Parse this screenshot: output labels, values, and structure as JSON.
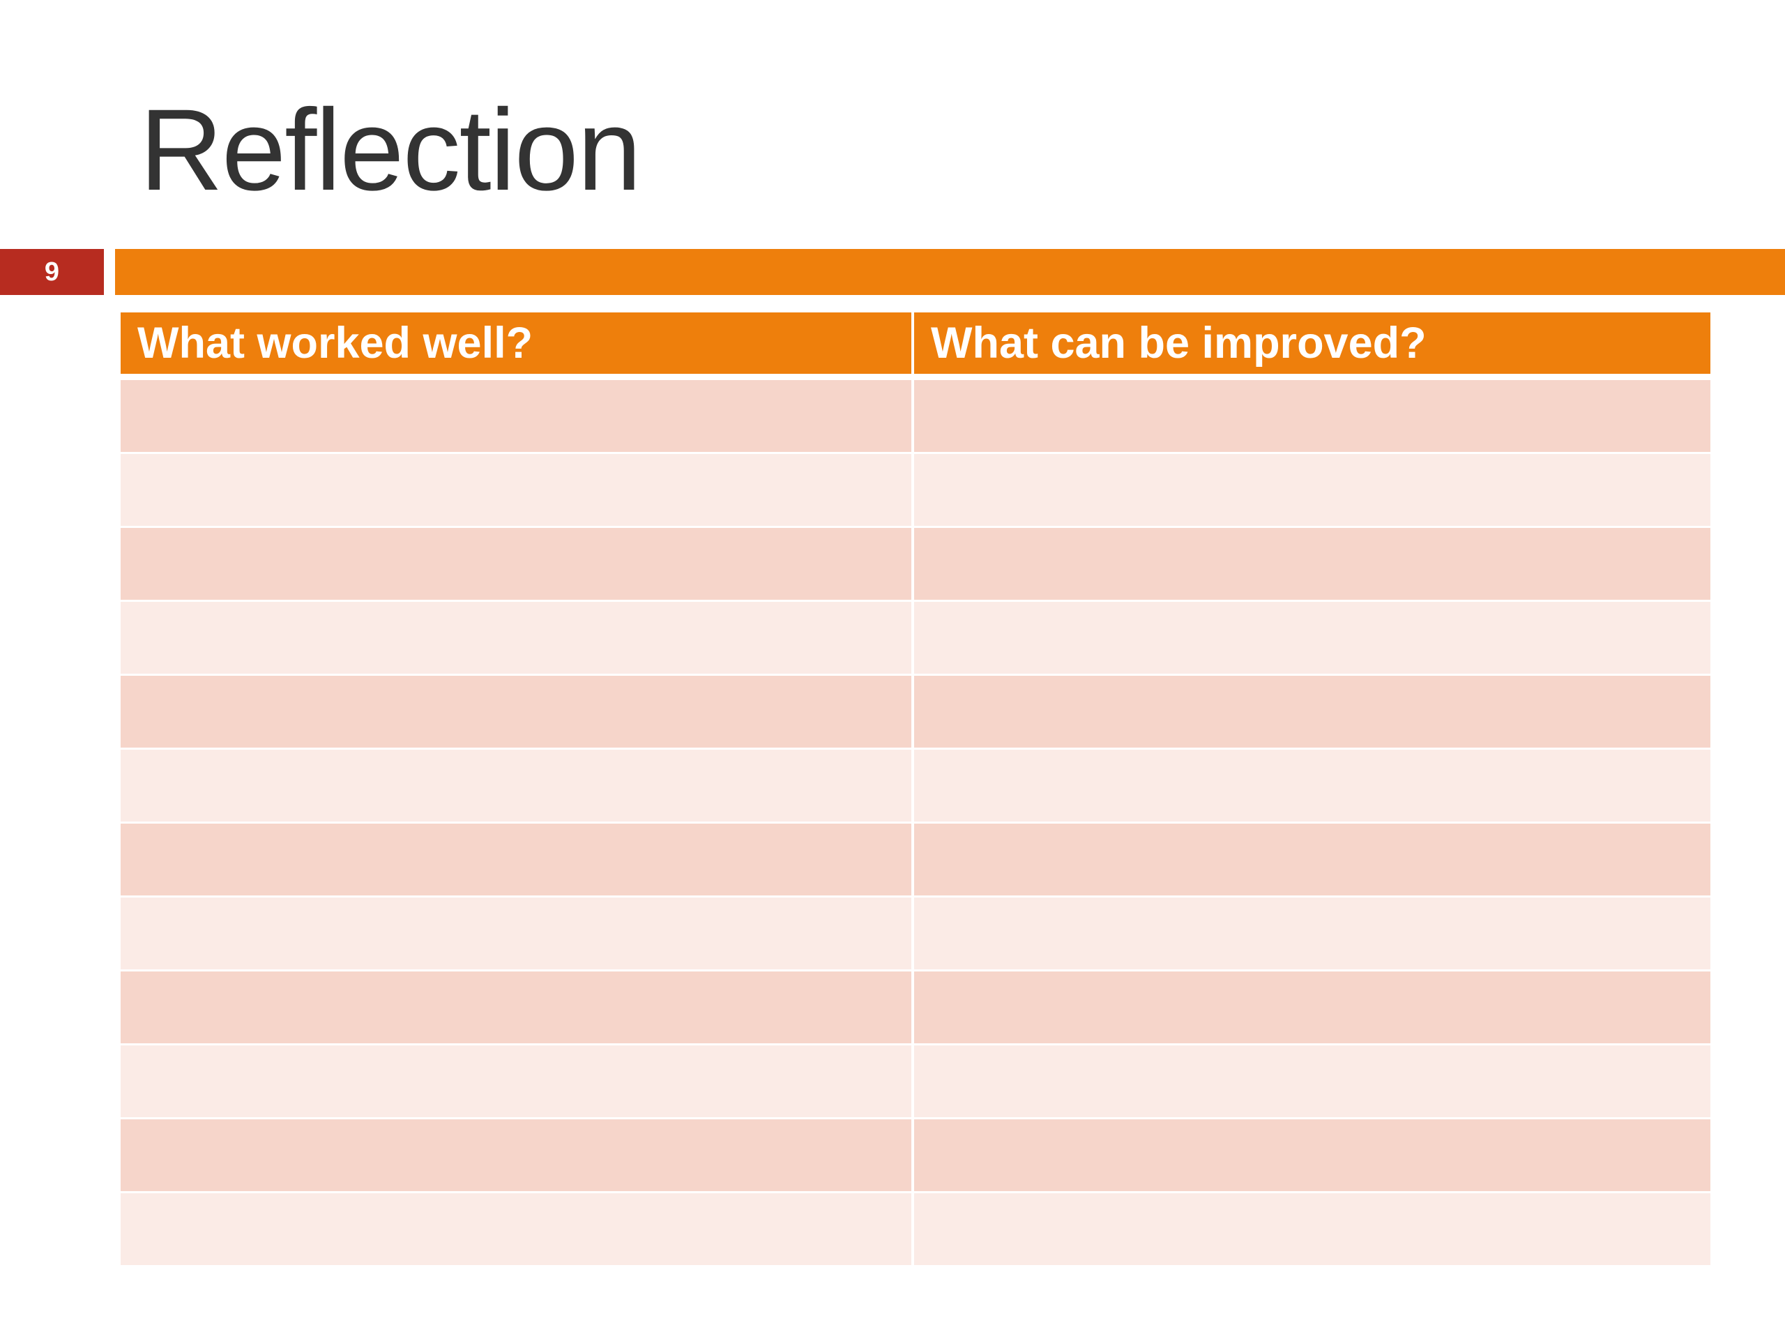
{
  "slide": {
    "title": "Reflection",
    "number": "9"
  },
  "table": {
    "headers": [
      "What worked well?",
      "What can be improved?"
    ],
    "rows": [
      [
        "",
        ""
      ],
      [
        "",
        ""
      ],
      [
        "",
        ""
      ],
      [
        "",
        ""
      ],
      [
        "",
        ""
      ],
      [
        "",
        ""
      ],
      [
        "",
        ""
      ],
      [
        "",
        ""
      ],
      [
        "",
        ""
      ],
      [
        "",
        ""
      ],
      [
        "",
        ""
      ],
      [
        "",
        ""
      ]
    ]
  },
  "colors": {
    "accent": "#ee7f0c",
    "slide_number_bg": "#b72c20",
    "row_dark": "#f6d5ca",
    "row_light": "#fbebe6"
  }
}
